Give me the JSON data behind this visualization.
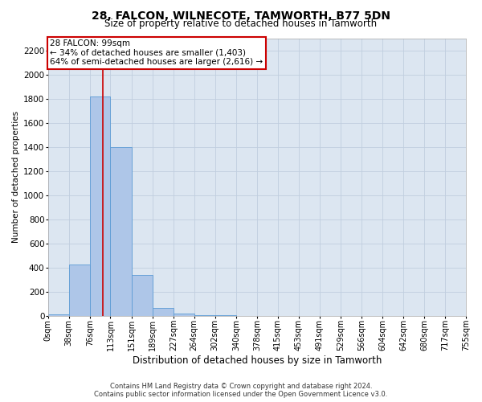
{
  "title": "28, FALCON, WILNECOTE, TAMWORTH, B77 5DN",
  "subtitle": "Size of property relative to detached houses in Tamworth",
  "xlabel": "Distribution of detached houses by size in Tamworth",
  "ylabel": "Number of detached properties",
  "footer_line1": "Contains HM Land Registry data © Crown copyright and database right 2024.",
  "footer_line2": "Contains public sector information licensed under the Open Government Licence v3.0.",
  "property_label": "28 FALCON: 99sqm",
  "annotation_line1": "← 34% of detached houses are smaller (1,403)",
  "annotation_line2": "64% of semi-detached houses are larger (2,616) →",
  "bar_edges": [
    0,
    38,
    76,
    113,
    151,
    189,
    227,
    264,
    302,
    340,
    378,
    415,
    453,
    491,
    529,
    566,
    604,
    642,
    680,
    717,
    755
  ],
  "bar_heights": [
    10,
    425,
    1820,
    1400,
    340,
    65,
    20,
    5,
    2,
    1,
    0,
    0,
    0,
    0,
    0,
    0,
    0,
    0,
    0,
    0
  ],
  "bar_color": "#aec6e8",
  "bar_edge_color": "#5b9bd5",
  "vline_x": 99,
  "vline_color": "#cc0000",
  "ylim": [
    0,
    2300
  ],
  "yticks": [
    0,
    200,
    400,
    600,
    800,
    1000,
    1200,
    1400,
    1600,
    1800,
    2000,
    2200
  ],
  "tick_labels": [
    "0sqm",
    "38sqm",
    "76sqm",
    "113sqm",
    "151sqm",
    "189sqm",
    "227sqm",
    "264sqm",
    "302sqm",
    "340sqm",
    "378sqm",
    "415sqm",
    "453sqm",
    "491sqm",
    "529sqm",
    "566sqm",
    "604sqm",
    "642sqm",
    "680sqm",
    "717sqm",
    "755sqm"
  ],
  "annotation_box_color": "#cc0000",
  "grid_color": "#c0cedf",
  "bg_color": "#dce6f1",
  "title_fontsize": 10,
  "subtitle_fontsize": 8.5,
  "ylabel_fontsize": 7.5,
  "xlabel_fontsize": 8.5,
  "tick_fontsize": 7,
  "ytick_fontsize": 7.5,
  "ann_fontsize": 7.5
}
